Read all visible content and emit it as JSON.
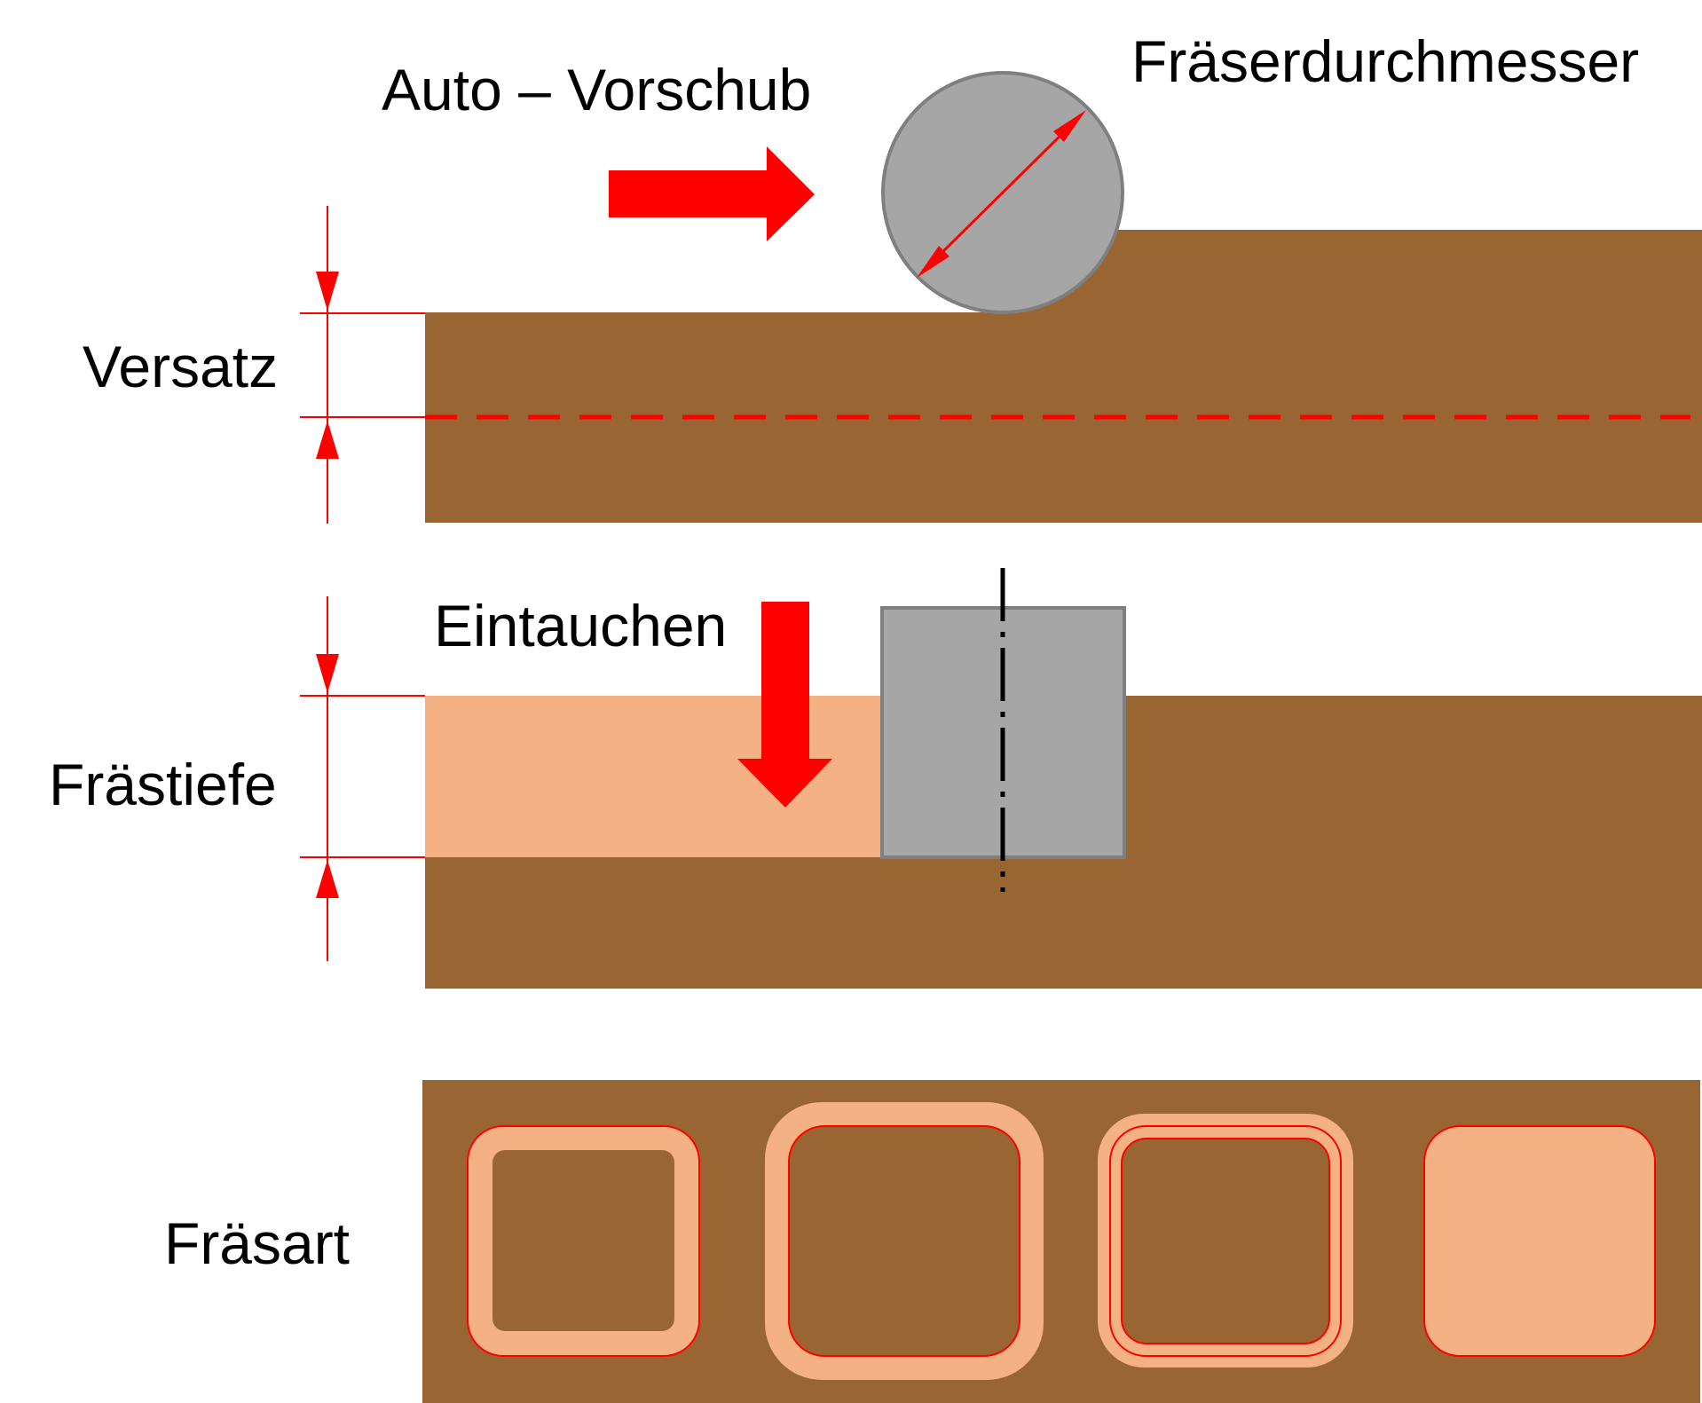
{
  "labels": {
    "auto_vorschub": "Auto – Vorschub",
    "fraeserdurchmesser": "Fräserdurchmesser",
    "versatz": "Versatz",
    "eintauchen": "Eintauchen",
    "fraestiefe": "Frästiefe",
    "fraesart": "Fräsart"
  },
  "colors": {
    "wood": "#996633",
    "milled": "#f4b183",
    "tool": "#a6a6a6",
    "tool_outline": "#7f7f7f",
    "accent_red": "#ff0000",
    "text": "#000000"
  },
  "fraesart_variants": [
    "pocket-outline-inside",
    "pocket-outline-outside",
    "pocket-outline-on-line",
    "pocket-full-area"
  ]
}
